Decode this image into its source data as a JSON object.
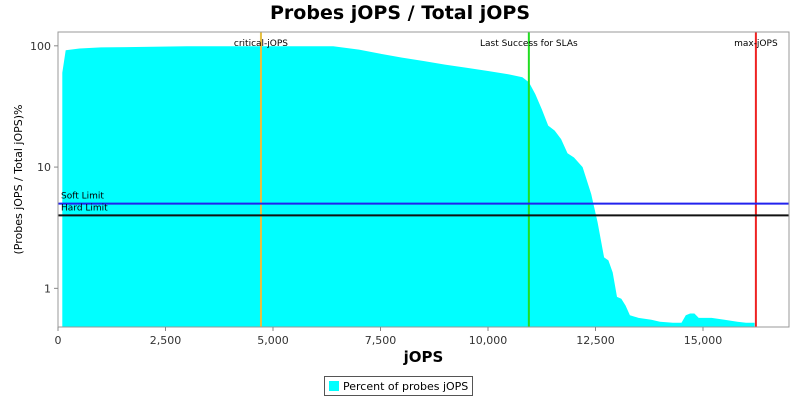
{
  "chart_data": {
    "type": "area",
    "title": "Probes jOPS / Total jOPS",
    "xlabel": "jOPS",
    "ylabel": "(Probes jOPS / Total jOPS)%",
    "x_scale": "linear",
    "y_scale": "log",
    "xlim": [
      0,
      17000
    ],
    "ylim": [
      0.48,
      130
    ],
    "x_ticks": [
      0,
      2500,
      5000,
      7500,
      10000,
      12500,
      15000
    ],
    "x_tick_labels": [
      "0",
      "2,500",
      "5,000",
      "7,500",
      "10,000",
      "12,500",
      "15,000"
    ],
    "y_ticks": [
      1,
      10,
      100
    ],
    "y_tick_labels": [
      "1",
      "10",
      "100"
    ],
    "grid": false,
    "legend_position": "bottom",
    "series": [
      {
        "name": "Percent of probes jOPS",
        "color": "#00ffff",
        "x": [
          100,
          180,
          500,
          1000,
          2000,
          3000,
          4000,
          5000,
          6000,
          6400,
          7000,
          7500,
          8000,
          8500,
          9000,
          9500,
          10000,
          10500,
          10800,
          10950,
          11100,
          11250,
          11400,
          11550,
          11700,
          11850,
          12000,
          12200,
          12400,
          12550,
          12700,
          12800,
          12900,
          13000,
          13100,
          13200,
          13300,
          13500,
          13800,
          14000,
          14300,
          14500,
          14600,
          14700,
          14800,
          14900,
          15200,
          15500,
          15800,
          16000,
          16200
        ],
        "values": [
          60,
          92,
          95,
          97,
          98,
          99,
          99,
          99,
          99,
          99,
          93,
          86,
          80,
          75,
          70,
          66,
          62,
          58,
          55,
          50,
          40,
          30,
          22,
          20,
          17,
          13,
          12,
          10,
          6,
          3.5,
          1.8,
          1.7,
          1.35,
          0.85,
          0.82,
          0.72,
          0.6,
          0.57,
          0.55,
          0.53,
          0.52,
          0.52,
          0.6,
          0.62,
          0.62,
          0.57,
          0.57,
          0.55,
          0.53,
          0.52,
          0.52
        ]
      }
    ],
    "markers": [
      {
        "label": "critical-jOPS",
        "x": 4720,
        "color": "#e6c040"
      },
      {
        "label": "Last Success for SLAs",
        "x": 10950,
        "color": "#22dd22"
      },
      {
        "label": "max-jOPS",
        "x": 16230,
        "color": "#ee2222"
      }
    ],
    "thresholds": [
      {
        "label": "Soft Limit",
        "y": 5,
        "color": "#2222ee"
      },
      {
        "label": "Hard Limit",
        "y": 4,
        "color": "#111111"
      }
    ]
  }
}
